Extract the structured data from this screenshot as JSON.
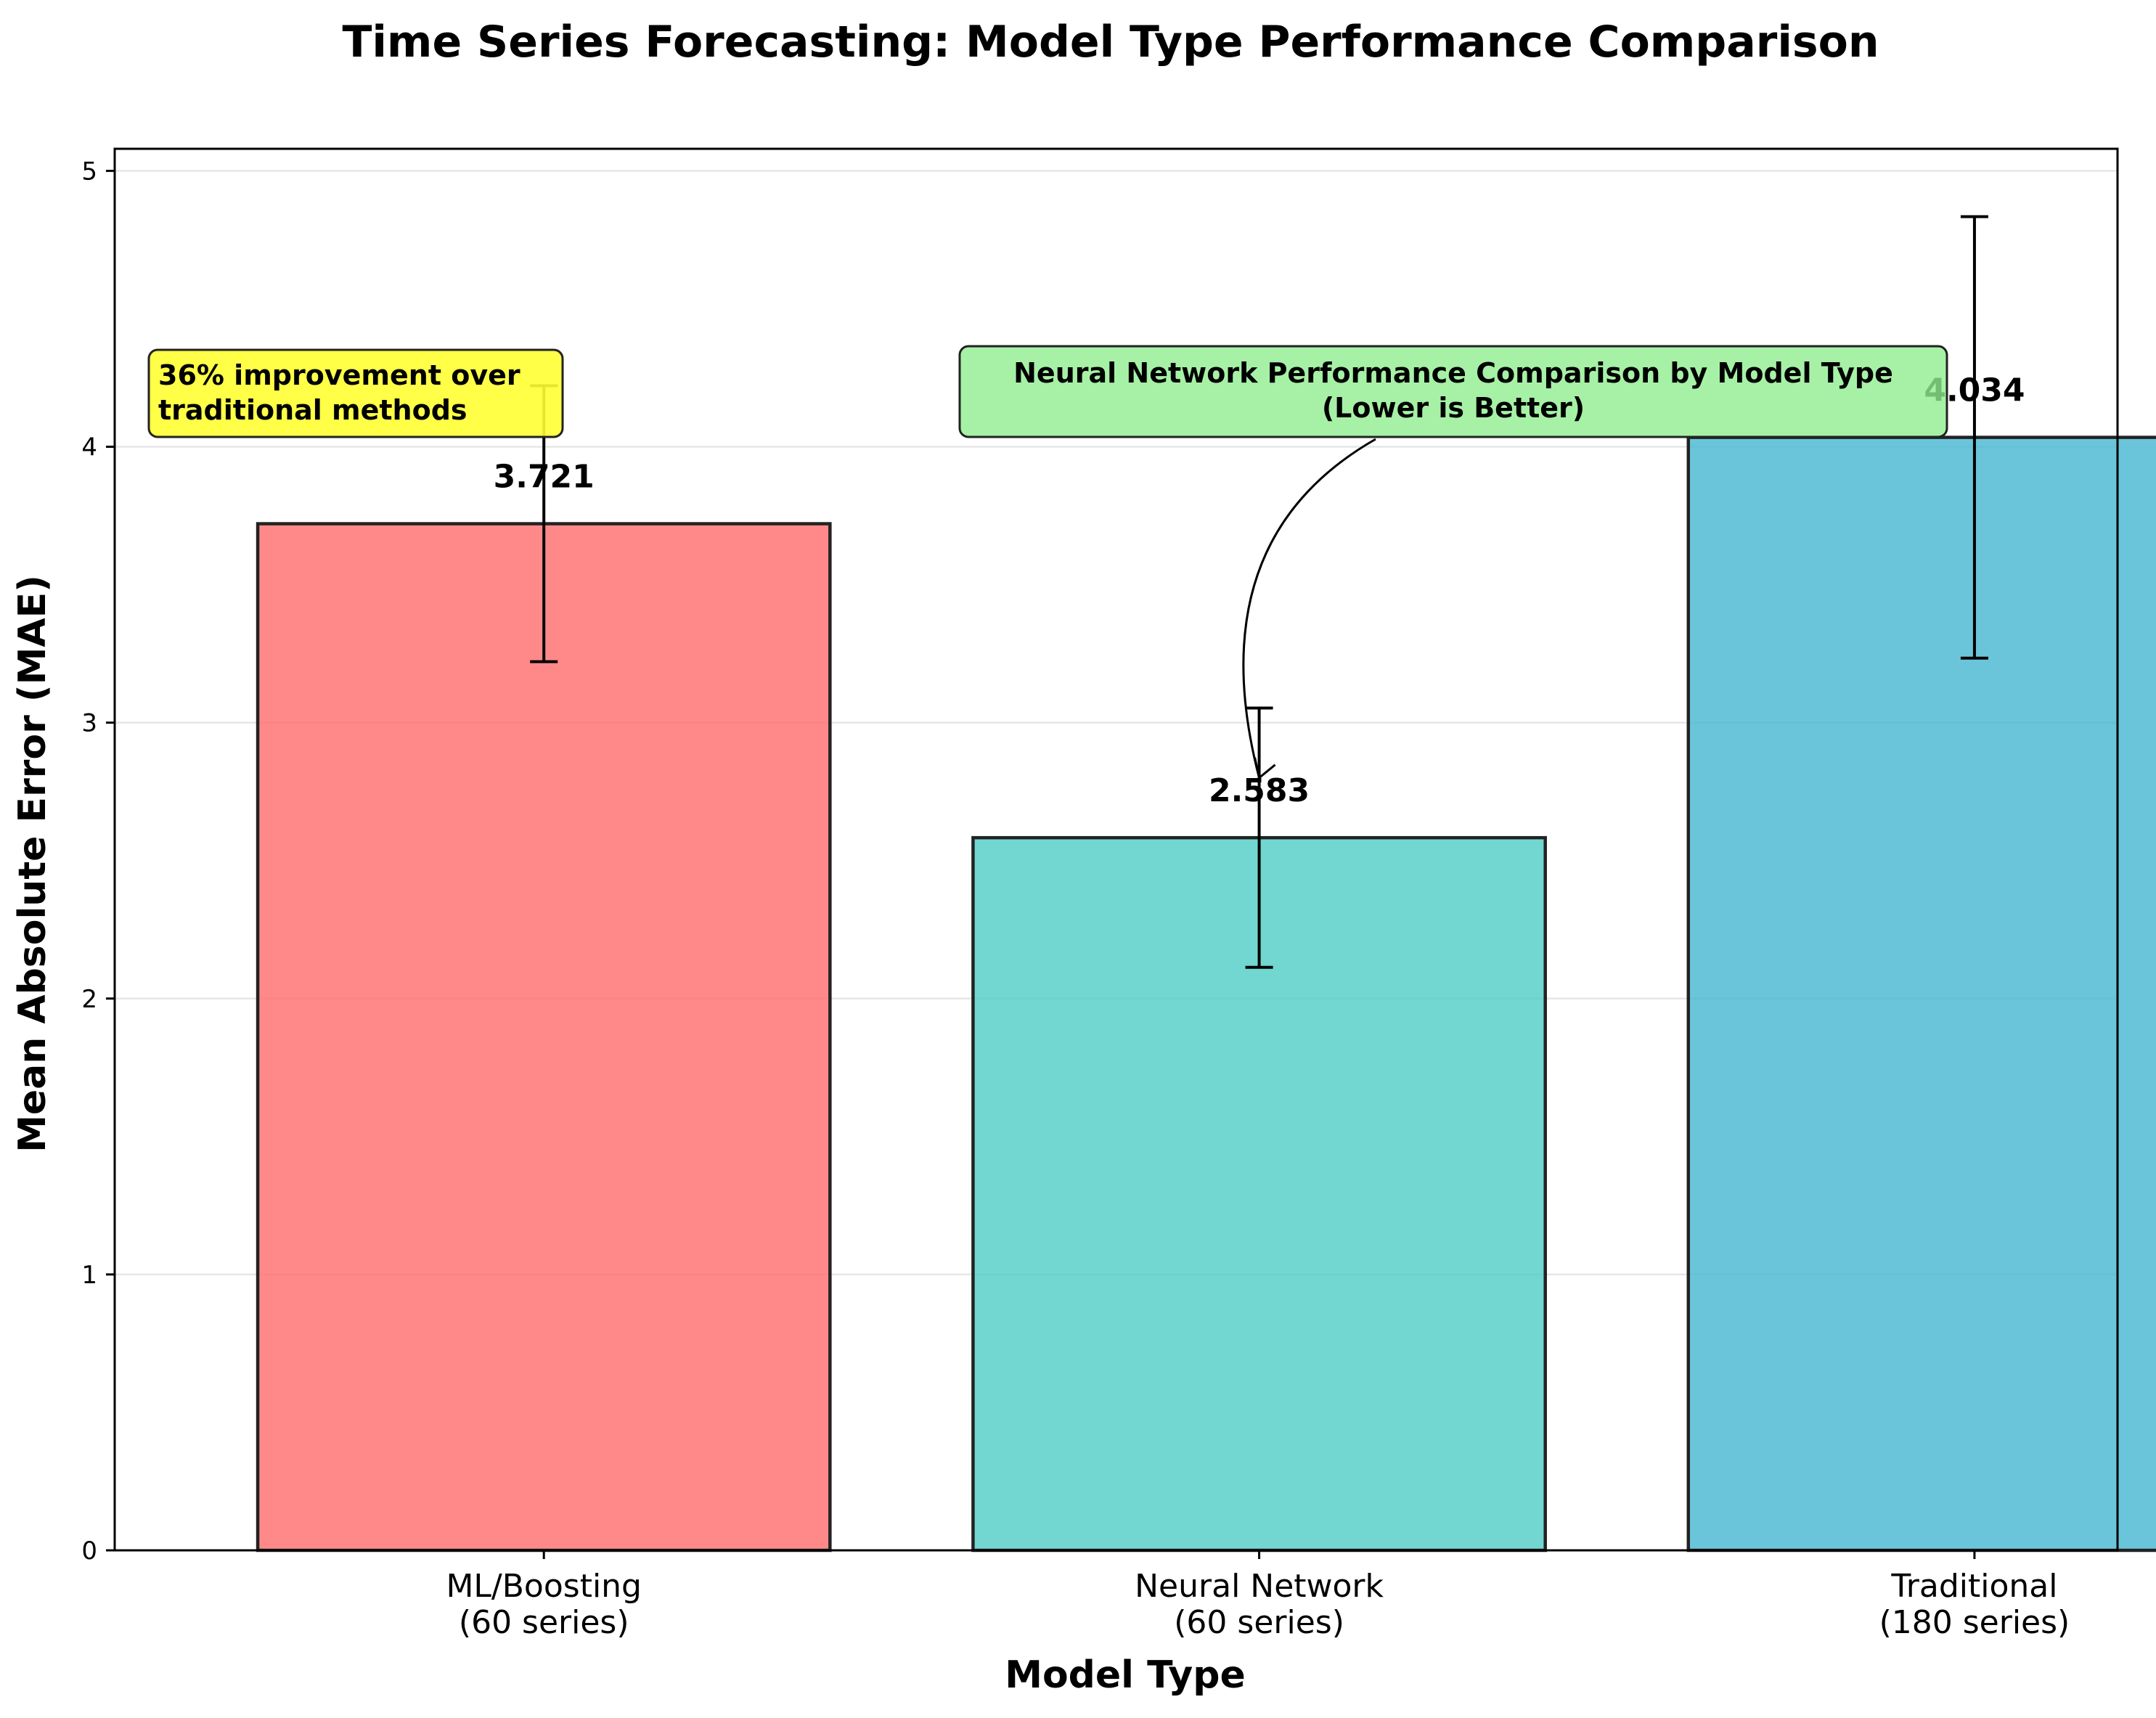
{
  "chart_data": {
    "type": "bar",
    "title": "Time Series Forecasting: Model Type Performance Comparison",
    "xlabel": "Model Type",
    "ylabel": "Mean Absolute Error (MAE)",
    "ylim": [
      0,
      5.08
    ],
    "yticks": [
      0,
      1,
      2,
      3,
      4,
      5
    ],
    "grid": "y",
    "categories": [
      [
        "ML/Boosting",
        "(60 series)"
      ],
      [
        "Neural Network",
        "(60 series)"
      ],
      [
        "Traditional",
        "(180 series)"
      ]
    ],
    "values": [
      3.721,
      2.583,
      4.034
    ],
    "value_labels": [
      "3.721",
      "2.583",
      "4.034"
    ],
    "error": [
      0.5,
      0.47,
      0.8
    ],
    "colors": [
      "#ff6b6b",
      "#4ecdc4",
      "#45b7d1"
    ],
    "annotations": [
      {
        "lines": [
          "36% improvement over",
          "traditional methods"
        ],
        "background": "#ffff33",
        "align": "left"
      },
      {
        "lines": [
          "Neural Network Performance Comparison by Model Type",
          "(Lower is Better)"
        ],
        "background": "#90ee90",
        "align": "center",
        "arrow_target": {
          "category": 1,
          "y": 2.8
        }
      }
    ]
  }
}
